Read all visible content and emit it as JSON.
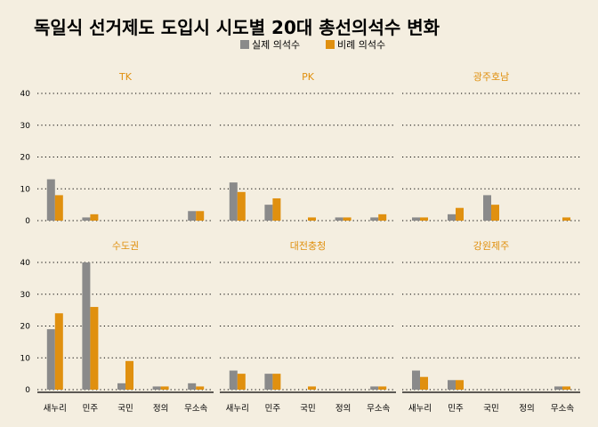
{
  "chart_data": {
    "type": "bar",
    "title": "독일식 선거제도 도입시 시도별 20대 총선의석수 변화",
    "legend": {
      "position": "top-center",
      "entries": [
        "실제 의석수",
        "비례 의석수"
      ]
    },
    "colors": {
      "실제 의석수": "#8a8a8a",
      "비례 의석수": "#e0900f",
      "panel_title": "#e0900f",
      "background": "#f4eee0"
    },
    "categories": [
      "새누리",
      "민주",
      "국민",
      "정의",
      "무소속"
    ],
    "ylim": [
      0,
      40
    ],
    "yticks": [
      0,
      10,
      20,
      30,
      40
    ],
    "grid": true,
    "panels": [
      {
        "title": "TK",
        "series": [
          {
            "name": "실제 의석수",
            "values": [
              13,
              1,
              0,
              0,
              3
            ]
          },
          {
            "name": "비례 의석수",
            "values": [
              8,
              2,
              0,
              0,
              3
            ]
          }
        ]
      },
      {
        "title": "PK",
        "series": [
          {
            "name": "실제 의석수",
            "values": [
              12,
              5,
              0,
              1,
              1
            ]
          },
          {
            "name": "비례 의석수",
            "values": [
              9,
              7,
              1,
              1,
              2
            ]
          }
        ]
      },
      {
        "title": "광주호남",
        "series": [
          {
            "name": "실제 의석수",
            "values": [
              1,
              2,
              8,
              0,
              0
            ]
          },
          {
            "name": "비례 의석수",
            "values": [
              1,
              4,
              5,
              0,
              1
            ]
          }
        ]
      },
      {
        "title": "수도권",
        "series": [
          {
            "name": "실제 의석수",
            "values": [
              19,
              40,
              2,
              1,
              2
            ]
          },
          {
            "name": "비례 의석수",
            "values": [
              24,
              26,
              9,
              1,
              1
            ]
          }
        ]
      },
      {
        "title": "대전충청",
        "series": [
          {
            "name": "실제 의석수",
            "values": [
              6,
              5,
              0,
              0,
              1
            ]
          },
          {
            "name": "비례 의석수",
            "values": [
              5,
              5,
              1,
              0,
              1
            ]
          }
        ]
      },
      {
        "title": "강원제주",
        "series": [
          {
            "name": "실제 의석수",
            "values": [
              6,
              3,
              0,
              0,
              1
            ]
          },
          {
            "name": "비례 의석수",
            "values": [
              4,
              3,
              0,
              0,
              1
            ]
          }
        ]
      }
    ]
  }
}
